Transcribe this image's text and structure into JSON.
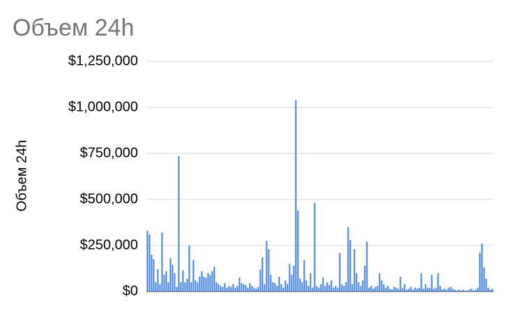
{
  "chart_data": {
    "type": "bar",
    "title": "Объем 24h",
    "y_label": "Объем 24h",
    "color": "#3d7ee0",
    "grid": true,
    "ylim": [
      0,
      1250000
    ],
    "yticks": [
      {
        "value": 0,
        "label": "$0"
      },
      {
        "value": 250000,
        "label": "$250,000"
      },
      {
        "value": 500000,
        "label": "$500,000"
      },
      {
        "value": 750000,
        "label": "$750,000"
      },
      {
        "value": 1000000,
        "label": "$1,000,000"
      },
      {
        "value": 1250000,
        "label": "$1,250,000"
      }
    ],
    "values": [
      330000,
      310000,
      200000,
      175000,
      50000,
      120000,
      40000,
      320000,
      90000,
      110000,
      50000,
      180000,
      145000,
      100000,
      25000,
      735000,
      50000,
      115000,
      50000,
      70000,
      250000,
      50000,
      170000,
      60000,
      50000,
      80000,
      110000,
      80000,
      75000,
      100000,
      90000,
      110000,
      135000,
      50000,
      40000,
      30000,
      25000,
      45000,
      20000,
      30000,
      25000,
      40000,
      20000,
      30000,
      75000,
      45000,
      40000,
      35000,
      20000,
      45000,
      30000,
      20000,
      15000,
      25000,
      120000,
      185000,
      40000,
      275000,
      230000,
      90000,
      50000,
      45000,
      30000,
      80000,
      40000,
      20000,
      60000,
      40000,
      150000,
      90000,
      140000,
      1040000,
      440000,
      70000,
      50000,
      170000,
      60000,
      30000,
      100000,
      20000,
      480000,
      30000,
      20000,
      40000,
      75000,
      30000,
      50000,
      35000,
      60000,
      20000,
      30000,
      20000,
      210000,
      40000,
      30000,
      50000,
      350000,
      280000,
      40000,
      230000,
      100000,
      50000,
      30000,
      60000,
      140000,
      270000,
      20000,
      30000,
      15000,
      25000,
      30000,
      100000,
      60000,
      40000,
      20000,
      30000,
      15000,
      10000,
      25000,
      20000,
      15000,
      80000,
      20000,
      40000,
      10000,
      15000,
      25000,
      10000,
      20000,
      15000,
      20000,
      100000,
      15000,
      40000,
      20000,
      20000,
      90000,
      15000,
      20000,
      100000,
      30000,
      10000,
      15000,
      10000,
      20000,
      25000,
      15000,
      10000,
      5000,
      10000,
      5000,
      10000,
      5000,
      5000,
      10000,
      15000,
      5000,
      10000,
      20000,
      210000,
      260000,
      130000,
      70000,
      20000,
      10000,
      15000
    ]
  }
}
